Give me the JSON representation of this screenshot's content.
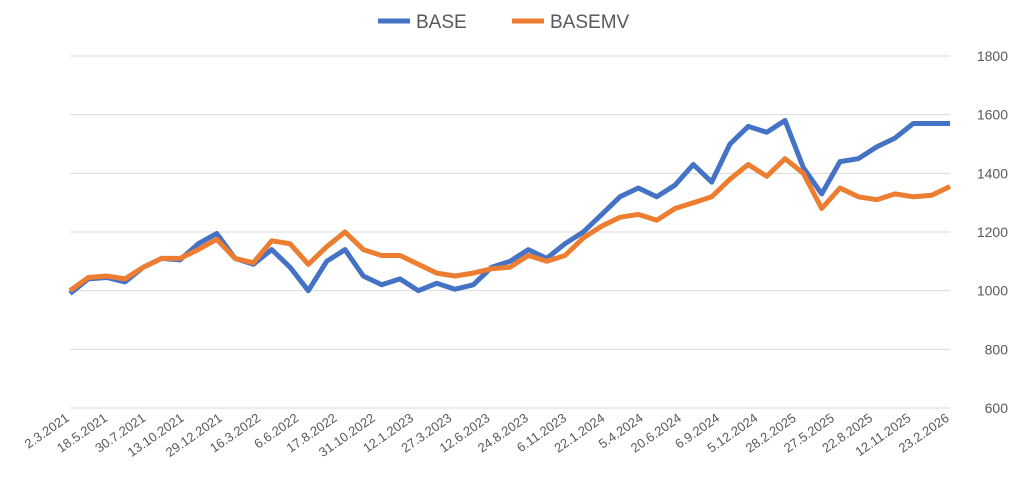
{
  "chart_data": {
    "type": "line",
    "title": "",
    "xlabel": "",
    "ylabel": "",
    "ylim": [
      600,
      1800
    ],
    "yticks": [
      600,
      800,
      1000,
      1200,
      1400,
      1600,
      1800
    ],
    "y_axis_side": "right",
    "grid": true,
    "legend_position": "top-center",
    "x_tick_labels": [
      "2.3.2021",
      "18.5.2021",
      "30.7.2021",
      "13.10.2021",
      "29.12.2021",
      "16.3.2022",
      "6.6.2022",
      "17.8.2022",
      "31.10.2022",
      "12.1.2023",
      "27.3.2023",
      "12.6.2023",
      "24.8.2023",
      "6.11.2023",
      "22.1.2024",
      "5.4.2024",
      "20.6.2024",
      "6.9.2024",
      "5.12.2024",
      "28.2.2025",
      "27.5.2025",
      "22.8.2025",
      "12.11.2025",
      "23.2.2026"
    ],
    "x_positions_note": "values sampled at every half tick interval",
    "series": [
      {
        "name": "BASE",
        "color": "#4472C4",
        "values": [
          990,
          1040,
          1045,
          1030,
          1080,
          1110,
          1105,
          1160,
          1195,
          1110,
          1090,
          1140,
          1080,
          1000,
          1100,
          1140,
          1050,
          1020,
          1040,
          1000,
          1025,
          1005,
          1020,
          1080,
          1100,
          1140,
          1110,
          1160,
          1200,
          1260,
          1320,
          1350,
          1320,
          1360,
          1430,
          1370,
          1500,
          1560,
          1540,
          1580,
          1420,
          1330,
          1440,
          1450,
          1490,
          1520,
          1570,
          1570,
          1570
        ]
      },
      {
        "name": "BASEMV",
        "color": "#ED7D31",
        "values": [
          1000,
          1045,
          1050,
          1040,
          1080,
          1110,
          1110,
          1140,
          1175,
          1110,
          1095,
          1170,
          1160,
          1090,
          1150,
          1200,
          1140,
          1120,
          1120,
          1090,
          1060,
          1050,
          1060,
          1075,
          1080,
          1120,
          1100,
          1120,
          1180,
          1220,
          1250,
          1260,
          1240,
          1280,
          1300,
          1320,
          1380,
          1430,
          1390,
          1450,
          1400,
          1280,
          1350,
          1320,
          1310,
          1330,
          1320,
          1325,
          1355
        ]
      }
    ]
  }
}
